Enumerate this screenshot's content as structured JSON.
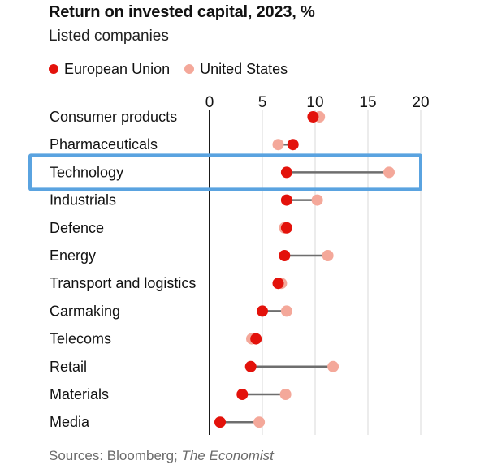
{
  "header": {
    "title": "Return on invested capital, 2023, %",
    "subtitle": "Listed companies"
  },
  "legend": [
    {
      "label": "European Union",
      "color": "#e3120b"
    },
    {
      "label": "United States",
      "color": "#f4a89a"
    }
  ],
  "footer": {
    "source_prefix": "Sources: Bloomberg; ",
    "source_italic": "The Economist"
  },
  "highlight": {
    "category": "Technology",
    "color": "#5aa3e0"
  },
  "chart_data": {
    "type": "dot-plot",
    "title": "Return on invested capital, 2023, %",
    "subtitle": "Listed companies",
    "xlim": [
      0,
      20
    ],
    "xticks": [
      0,
      5,
      10,
      15,
      20
    ],
    "grid": true,
    "legend_position": "top-left",
    "categories": [
      "Consumer products",
      "Pharmaceuticals",
      "Technology",
      "Industrials",
      "Defence",
      "Energy",
      "Transport and logistics",
      "Carmaking",
      "Telecoms",
      "Retail",
      "Materials",
      "Media"
    ],
    "series": [
      {
        "name": "European Union",
        "color": "#e3120b",
        "values": [
          9.8,
          7.9,
          7.3,
          7.3,
          7.3,
          7.1,
          6.5,
          5.0,
          4.4,
          3.9,
          3.1,
          1.0
        ]
      },
      {
        "name": "United States",
        "color": "#f4a89a",
        "values": [
          10.4,
          6.5,
          17.0,
          10.2,
          7.1,
          11.2,
          6.8,
          7.3,
          4.0,
          11.7,
          7.2,
          4.7
        ]
      }
    ]
  }
}
